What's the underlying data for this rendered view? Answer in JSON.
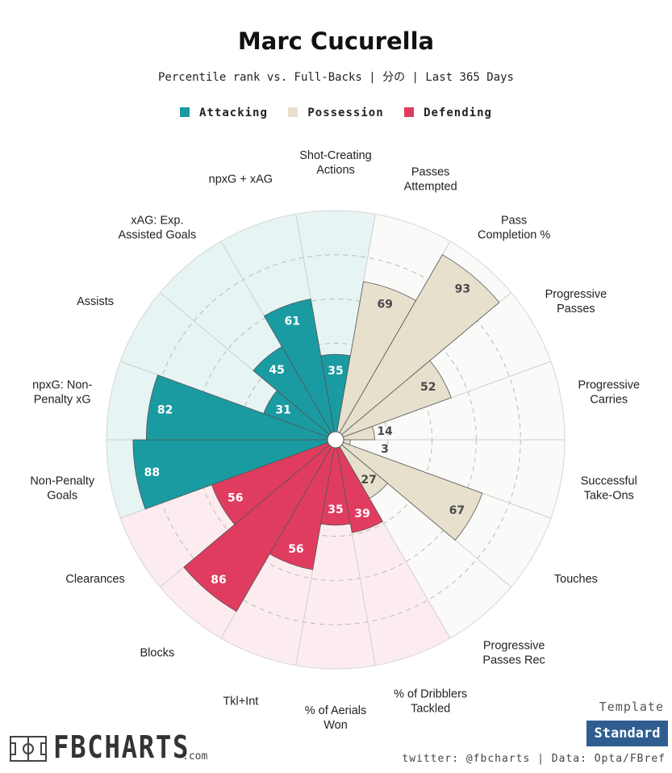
{
  "title": "Marc Cucurella",
  "subtitle": "Percentile rank vs. Full-Backs | 分の | Last 365 Days",
  "legend": [
    {
      "label": "Attacking",
      "color": "#1a9ba1"
    },
    {
      "label": "Possession",
      "color": "#e6e0cd"
    },
    {
      "label": "Defending",
      "color": "#e03c5f"
    }
  ],
  "footer": {
    "template_label": "Template",
    "template_value": "Standard",
    "credit": "twitter: @fbcharts | Data: Opta/FBref",
    "logo_text": "FBCHARTS",
    "logo_suffix": ".com"
  },
  "chart_data": {
    "type": "polar-bar",
    "title": "Marc Cucurella",
    "rlim": [
      0,
      100
    ],
    "grid_rings": [
      20,
      40,
      60,
      80
    ],
    "categories": [
      {
        "label": "Shot-Creating\nActions",
        "value": 35,
        "group": "Attacking"
      },
      {
        "label": "Passes\nAttempted",
        "value": 69,
        "group": "Possession"
      },
      {
        "label": "Pass\nCompletion %",
        "value": 93,
        "group": "Possession"
      },
      {
        "label": "Progressive\nPasses",
        "value": 52,
        "group": "Possession"
      },
      {
        "label": "Progressive\nCarries",
        "value": 14,
        "group": "Possession"
      },
      {
        "label": "Successful\nTake-Ons",
        "value": 3,
        "group": "Possession"
      },
      {
        "label": "Touches",
        "value": 67,
        "group": "Possession"
      },
      {
        "label": "Progressive\nPasses Rec",
        "value": 27,
        "group": "Possession"
      },
      {
        "label": "% of Dribblers\nTackled",
        "value": 39,
        "group": "Defending"
      },
      {
        "label": "% of Aerials\nWon",
        "value": 35,
        "group": "Defending"
      },
      {
        "label": "Tkl+Int",
        "value": 56,
        "group": "Defending"
      },
      {
        "label": "Blocks",
        "value": 86,
        "group": "Defending"
      },
      {
        "label": "Clearances",
        "value": 56,
        "group": "Defending"
      },
      {
        "label": "Non-Penalty\nGoals",
        "value": 88,
        "group": "Attacking"
      },
      {
        "label": "npxG: Non-\nPenalty xG",
        "value": 82,
        "group": "Attacking"
      },
      {
        "label": "Assists",
        "value": 31,
        "group": "Attacking"
      },
      {
        "label": "xAG: Exp.\nAssisted Goals",
        "value": 45,
        "group": "Attacking"
      },
      {
        "label": "npxG + xAG",
        "value": 61,
        "group": "Attacking"
      }
    ],
    "group_colors": {
      "Attacking": {
        "bar": "#1a9ba1",
        "bg": "#e7f4f4",
        "text": "#ffffff"
      },
      "Possession": {
        "bar": "#e6e0cd",
        "bg": "#fafaf8",
        "text": "#4a4a4a"
      },
      "Defending": {
        "bar": "#e03c5f",
        "bg": "#fdecef",
        "text": "#ffffff"
      }
    }
  }
}
